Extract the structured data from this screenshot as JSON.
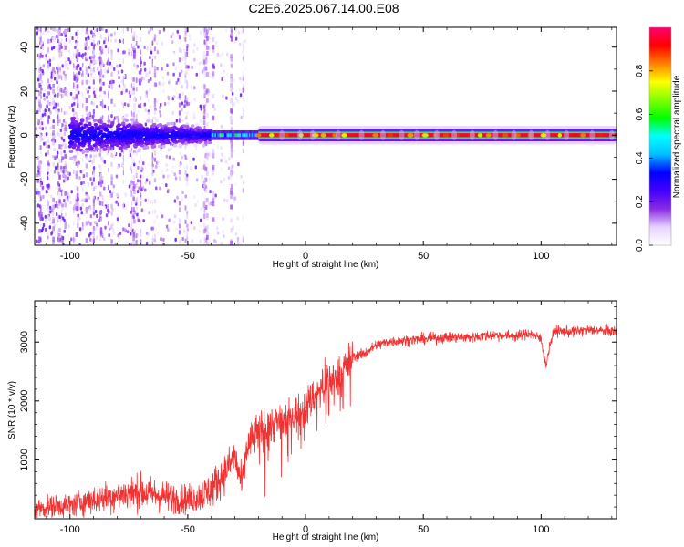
{
  "title": "C2E6.2025.067.14.00.E08",
  "chart_data": [
    {
      "type": "heatmap",
      "name": "spectrogram",
      "xlabel": "Height of straight line (km)",
      "ylabel": "Frequency (Hz)",
      "xlim": [
        -115,
        132
      ],
      "ylim": [
        -50,
        49
      ],
      "xticks": [
        -100,
        -50,
        0,
        50,
        100
      ],
      "yticks": [
        -40,
        -20,
        0,
        20,
        40
      ],
      "grid": false,
      "signal": {
        "center_frequency_hz": 0,
        "coherent_from_km": -20,
        "transition_from_km": -40,
        "noise_until_km": -26,
        "coherent_amplitude": 0.95,
        "transition_amplitude": 0.45,
        "turbulent_amplitude": 0.3
      },
      "colorbar": {
        "label": "Normalized spectral amplitude",
        "range": [
          0,
          1
        ],
        "ticks": [
          0.0,
          0.2,
          0.4,
          0.6,
          0.8
        ],
        "colormap": [
          "#ffffff",
          "#e6d2ff",
          "#8a2be2",
          "#4400ff",
          "#0000ff",
          "#00bfff",
          "#00ffff",
          "#00ff00",
          "#80ff00",
          "#ffff00",
          "#ff8000",
          "#ff0000",
          "#ff0070"
        ]
      }
    },
    {
      "type": "line",
      "name": "snr",
      "xlabel": "Height of straight line (km)",
      "ylabel": "SNR (10 * v/v)",
      "xlim": [
        -115,
        132
      ],
      "ylim": [
        0,
        3700
      ],
      "xticks": [
        -100,
        -50,
        0,
        50,
        100
      ],
      "yticks": [
        1000,
        2000,
        3000
      ],
      "grid": false,
      "color": "#f03232",
      "series": [
        {
          "x": [
            -115,
            -110,
            -105,
            -100,
            -95,
            -90,
            -85,
            -80,
            -75,
            -70,
            -65,
            -60,
            -55,
            -50,
            -45,
            -40,
            -35,
            -30,
            -27,
            -25,
            -20,
            -15,
            -10,
            -5,
            0,
            5,
            10,
            15,
            20,
            25,
            30,
            35,
            40,
            50,
            60,
            70,
            80,
            90,
            95,
            100,
            102,
            104,
            106,
            110,
            120,
            132
          ],
          "values": [
            170,
            190,
            220,
            230,
            280,
            330,
            360,
            400,
            430,
            450,
            420,
            380,
            340,
            330,
            380,
            500,
            750,
            1050,
            550,
            1200,
            1500,
            1600,
            1650,
            1750,
            1900,
            2150,
            2350,
            2450,
            2750,
            2800,
            2950,
            3000,
            3020,
            3050,
            3080,
            3080,
            3120,
            3100,
            3150,
            3050,
            2600,
            3000,
            3200,
            3170,
            3200,
            3180
          ]
        }
      ]
    }
  ]
}
